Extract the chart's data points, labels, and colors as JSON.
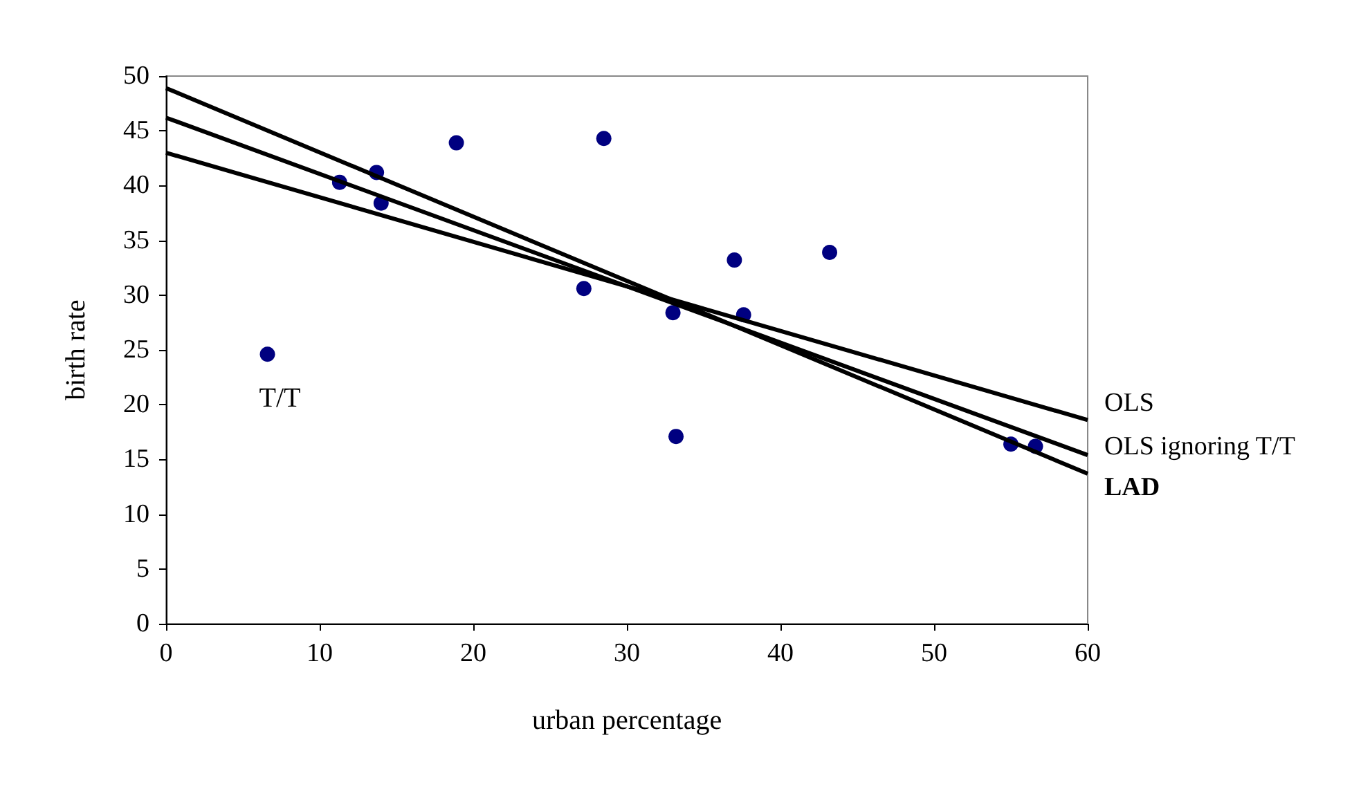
{
  "chart_data": {
    "type": "scatter",
    "xlabel": "urban percentage",
    "ylabel": "birth rate",
    "xlim": [
      0,
      60
    ],
    "xticks": [
      0,
      10,
      20,
      30,
      40,
      50,
      60
    ],
    "ylim": [
      0,
      50
    ],
    "yticks": [
      0,
      5,
      10,
      15,
      20,
      25,
      30,
      35,
      40,
      45,
      50
    ],
    "grid": false,
    "legend": false,
    "marker": "circle",
    "annotations": [
      {
        "text": "T/T",
        "x": 6.6,
        "y": 24.6
      }
    ],
    "series": [
      {
        "color": "#000080",
        "x": [
          6.6,
          11.3,
          13.7,
          14.0,
          18.9,
          28.5,
          27.2,
          37.0,
          43.2,
          33.0,
          37.6,
          33.2,
          55.0,
          56.6
        ],
        "values": [
          24.6,
          40.3,
          41.2,
          38.4,
          43.9,
          44.3,
          30.6,
          33.2,
          33.9,
          28.4,
          28.2,
          17.1,
          16.4,
          16.2
        ]
      },
      {
        "type": "line",
        "name": "OLS",
        "color": "#000000",
        "marker": "none",
        "x": [
          0,
          60
        ],
        "values": [
          43.0,
          18.6
        ]
      },
      {
        "type": "line",
        "name": "OLS ignoring T/T",
        "color": "#000000",
        "marker": "none",
        "x": [
          0,
          60
        ],
        "values": [
          46.2,
          15.4
        ]
      },
      {
        "type": "line",
        "name": "LAD",
        "color": "#000000",
        "marker": "none",
        "x": [
          0,
          60
        ],
        "values": [
          48.9,
          13.7
        ]
      }
    ]
  }
}
